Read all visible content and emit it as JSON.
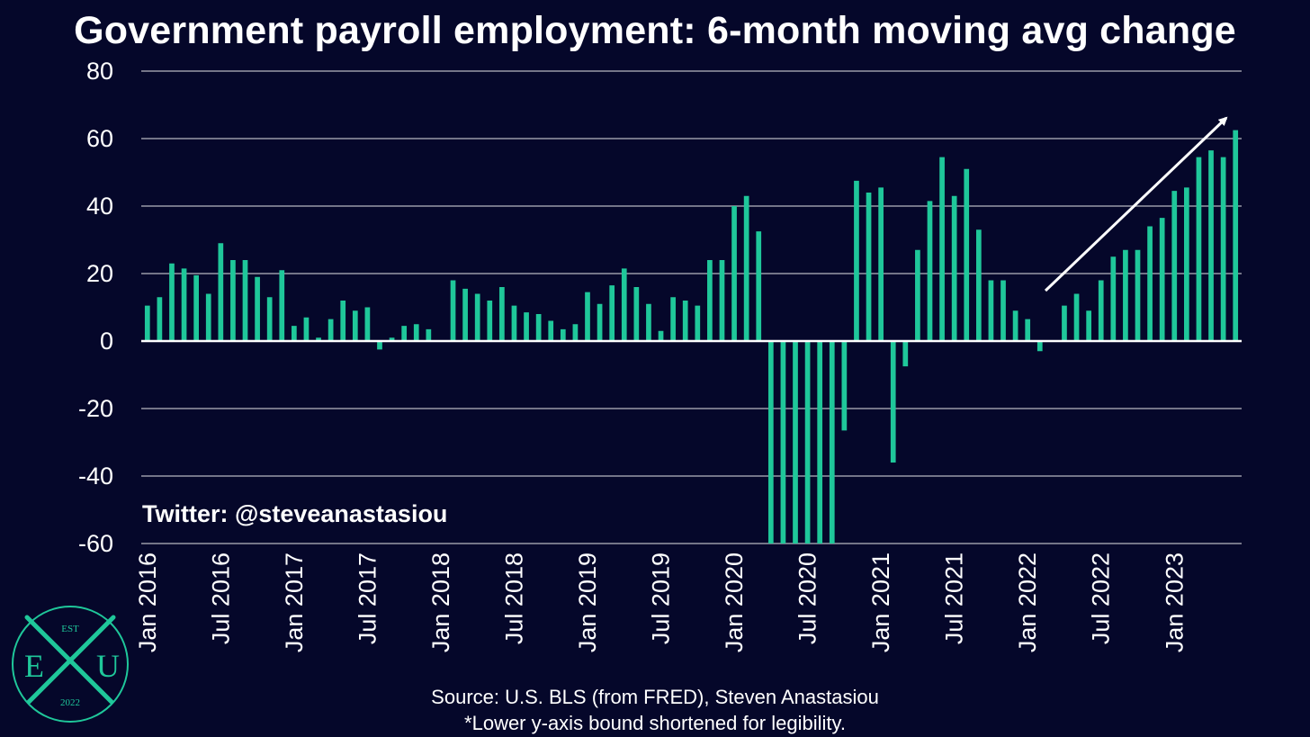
{
  "title": "Government payroll employment: 6-month moving avg change",
  "watermark": "Twitter: @steveanastasiou",
  "source": "Source: U.S. BLS (from FRED), Steven Anastasiou",
  "note": "*Lower y-axis bound shortened for legibility.",
  "logo": {
    "top": "EST",
    "left": "E",
    "right": "U",
    "bottom": "2022",
    "icon": "crossed-swords-icon"
  },
  "colors": {
    "background": "#05072a",
    "bar": "#1fc79a",
    "grid": "#9a9aa8",
    "logo": "#1fc79a"
  },
  "chart_data": {
    "type": "bar",
    "title": "Government payroll employment: 6-month moving avg change",
    "ylim": [
      -60,
      80
    ],
    "yticks": [
      80,
      60,
      40,
      20,
      0,
      -20,
      -40,
      -60
    ],
    "grid": true,
    "x_tick_labels": [
      "Jan 2016",
      "Jul 2016",
      "Jan 2017",
      "Jul 2017",
      "Jan 2018",
      "Jul 2018",
      "Jan 2019",
      "Jul 2019",
      "Jan 2020",
      "Jul 2020",
      "Jan 2021",
      "Jul 2021",
      "Jan 2022",
      "Jul 2022",
      "Jan 2023"
    ],
    "x_tick_months": [
      0,
      6,
      12,
      18,
      24,
      30,
      36,
      42,
      48,
      54,
      60,
      66,
      72,
      78,
      84
    ],
    "series": [
      {
        "start": "Jan 2016",
        "values": [
          10.5,
          13,
          23,
          21.5,
          19.5,
          14,
          29,
          24,
          24,
          19,
          13,
          21,
          4.5,
          7,
          1,
          6.5,
          12,
          9,
          10,
          -2.5,
          1,
          4.5,
          5,
          3.5,
          0,
          18,
          15.5,
          14,
          12,
          16,
          10.5,
          8.5,
          8,
          6,
          3.5,
          5,
          14.5,
          11,
          16.5,
          21.5,
          16,
          11,
          3,
          13,
          12,
          10.5,
          24,
          24,
          40,
          43,
          32.5,
          -60,
          -60,
          -60,
          -60,
          -60,
          -60,
          -26.5,
          47.5,
          44,
          45.5,
          -36,
          -7.5,
          27,
          41.5,
          54.5,
          43,
          51,
          33,
          18,
          18,
          9,
          6.5,
          -3,
          0,
          10.5,
          14,
          9,
          18,
          25,
          27,
          27,
          34,
          36.5,
          44.5,
          45.5,
          54.5,
          56.5,
          54.5,
          62.5
        ]
      }
    ],
    "annotation": "upward trend arrow"
  }
}
